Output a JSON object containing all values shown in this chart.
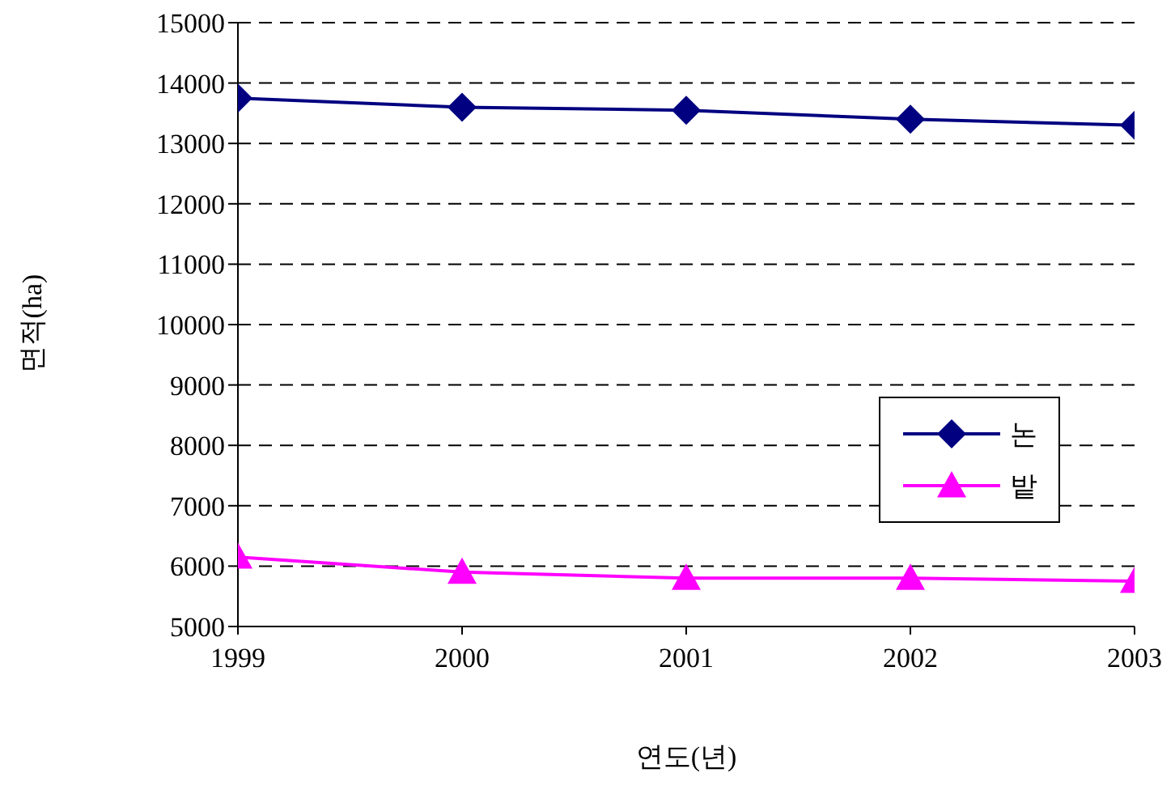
{
  "chart_data": {
    "type": "line",
    "xlabel": "연도(년)",
    "ylabel": "면적(ha)",
    "x": [
      1999,
      2000,
      2001,
      2002,
      2003
    ],
    "series": [
      {
        "name": "논",
        "color": "#000080",
        "marker": "diamond",
        "values": [
          13750,
          13600,
          13550,
          13400,
          13300
        ]
      },
      {
        "name": "밭",
        "color": "#ff00ff",
        "marker": "triangle",
        "values": [
          6150,
          5900,
          5800,
          5800,
          5750
        ]
      }
    ],
    "xlim": [
      1999,
      2003
    ],
    "xticks": [
      1999,
      2000,
      2001,
      2002,
      2003
    ],
    "ylim": [
      5000,
      15000
    ],
    "yticks": [
      5000,
      6000,
      7000,
      8000,
      9000,
      10000,
      11000,
      12000,
      13000,
      14000,
      15000
    ],
    "grid": "y",
    "legend": "right"
  }
}
